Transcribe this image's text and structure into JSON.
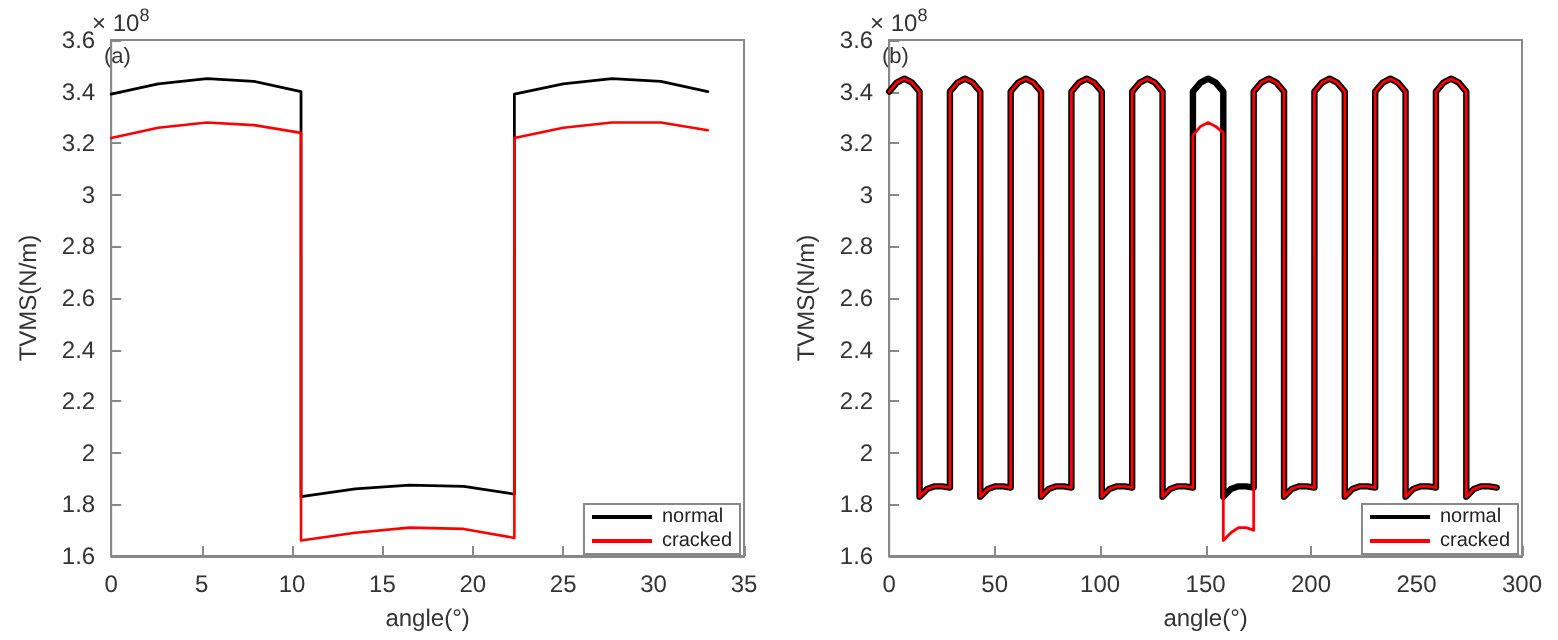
{
  "chart_data": [
    {
      "type": "line",
      "xlabel": "angle(°)",
      "ylabel": "TVMS(N/m)",
      "annotations": [
        "(a)",
        "× 10$^{8}$"
      ],
      "x": [
        0,
        2.6,
        5.3,
        7.9,
        10.5,
        10.5,
        13.5,
        16.5,
        19.5,
        22.3,
        22.3,
        25,
        27.7,
        30.4,
        33
      ],
      "series": [
        {
          "name": "normal",
          "color": "#000000",
          "values": [
            3.39,
            3.43,
            3.45,
            3.44,
            3.4,
            1.83,
            1.86,
            1.875,
            1.87,
            1.84,
            3.39,
            3.43,
            3.45,
            3.44,
            3.4
          ]
        },
        {
          "name": "cracked",
          "color": "#ff0000",
          "values": [
            3.22,
            3.26,
            3.28,
            3.27,
            3.24,
            1.66,
            1.69,
            1.71,
            1.705,
            1.67,
            3.22,
            3.26,
            3.28,
            3.28,
            3.25
          ]
        }
      ],
      "xlim": [
        0,
        35
      ],
      "xticks": [
        0,
        5,
        10,
        15,
        20,
        25,
        30,
        35
      ],
      "ylim": [
        1.6,
        3.6
      ],
      "yticks": [
        1.6,
        1.8,
        2,
        2.2,
        2.4,
        2.6,
        2.8,
        3,
        3.2,
        3.4,
        3.6
      ],
      "grid": false,
      "legend": "bottom right",
      "marker": "none",
      "line_style": "solid"
    },
    {
      "type": "line",
      "xlabel": "angle(°)",
      "ylabel": "TVMS(N/m)",
      "annotations": [
        "(b)",
        "× 10$^{8}$"
      ],
      "x": [
        0,
        3.6,
        7.2,
        10.8,
        14.4,
        14.4,
        18,
        21.6,
        25.2,
        28.8,
        28.8,
        32.4,
        36,
        39.6,
        43.2,
        43.2,
        46.8,
        50.4,
        54,
        57.6,
        57.6,
        61.2,
        64.8,
        68.4,
        72,
        72,
        75.6,
        79.2,
        82.8,
        86.4,
        86.4,
        90,
        93.6,
        97.2,
        100.8,
        100.8,
        104.4,
        108,
        111.6,
        115.2,
        115.2,
        118.8,
        122.4,
        126,
        129.6,
        129.6,
        133.2,
        136.8,
        140.4,
        144,
        144,
        147.6,
        151.2,
        154.8,
        158.4,
        158.4,
        162,
        165.6,
        169.2,
        172.8,
        172.8,
        176.4,
        180,
        183.6,
        187.2,
        187.2,
        190.8,
        194.4,
        198,
        201.6,
        201.6,
        205.2,
        208.8,
        212.4,
        216,
        216,
        219.6,
        223.2,
        226.8,
        230.4,
        230.4,
        234,
        237.6,
        241.2,
        244.8,
        244.8,
        248.4,
        252,
        255.6,
        259.2,
        259.2,
        262.8,
        266.4,
        270,
        273.6,
        273.6,
        277.2,
        280.8,
        284.4,
        288
      ],
      "series": [
        {
          "name": "normal",
          "color": "#000000",
          "values": [
            3.4,
            3.435,
            3.45,
            3.435,
            3.4,
            1.83,
            1.86,
            1.87,
            1.87,
            1.865,
            3.4,
            3.435,
            3.45,
            3.435,
            3.4,
            1.83,
            1.86,
            1.87,
            1.87,
            1.865,
            3.4,
            3.435,
            3.45,
            3.435,
            3.4,
            1.83,
            1.86,
            1.87,
            1.87,
            1.865,
            3.4,
            3.435,
            3.45,
            3.435,
            3.4,
            1.83,
            1.86,
            1.87,
            1.87,
            1.865,
            3.4,
            3.435,
            3.45,
            3.435,
            3.4,
            1.83,
            1.86,
            1.87,
            1.87,
            1.865,
            3.4,
            3.435,
            3.45,
            3.435,
            3.4,
            1.83,
            1.86,
            1.87,
            1.87,
            1.865,
            3.4,
            3.435,
            3.45,
            3.435,
            3.4,
            1.83,
            1.86,
            1.87,
            1.87,
            1.865,
            3.4,
            3.435,
            3.45,
            3.435,
            3.4,
            1.83,
            1.86,
            1.87,
            1.87,
            1.865,
            3.4,
            3.435,
            3.45,
            3.435,
            3.4,
            1.83,
            1.86,
            1.87,
            1.87,
            1.865,
            3.4,
            3.435,
            3.45,
            3.435,
            3.4,
            1.83,
            1.86,
            1.87,
            1.87,
            1.865
          ]
        },
        {
          "name": "cracked",
          "color": "#ff0000",
          "values": [
            3.4,
            3.435,
            3.45,
            3.435,
            3.4,
            1.83,
            1.86,
            1.87,
            1.87,
            1.865,
            3.4,
            3.435,
            3.45,
            3.435,
            3.4,
            1.83,
            1.86,
            1.87,
            1.87,
            1.865,
            3.4,
            3.435,
            3.45,
            3.435,
            3.4,
            1.83,
            1.86,
            1.87,
            1.87,
            1.865,
            3.4,
            3.435,
            3.45,
            3.435,
            3.4,
            1.83,
            1.86,
            1.87,
            1.87,
            1.865,
            3.4,
            3.435,
            3.45,
            3.435,
            3.4,
            1.83,
            1.86,
            1.87,
            1.87,
            1.865,
            3.23,
            3.265,
            3.28,
            3.265,
            3.24,
            1.66,
            1.69,
            1.71,
            1.71,
            1.7,
            3.4,
            3.435,
            3.45,
            3.435,
            3.4,
            1.83,
            1.86,
            1.87,
            1.87,
            1.865,
            3.4,
            3.435,
            3.45,
            3.435,
            3.4,
            1.83,
            1.86,
            1.87,
            1.87,
            1.865,
            3.4,
            3.435,
            3.45,
            3.435,
            3.4,
            1.83,
            1.86,
            1.87,
            1.87,
            1.865,
            3.4,
            3.435,
            3.45,
            3.435,
            3.4,
            1.83,
            1.86,
            1.87,
            1.87,
            1.865
          ]
        }
      ],
      "xlim": [
        0,
        300
      ],
      "xticks": [
        0,
        50,
        100,
        150,
        200,
        250,
        300
      ],
      "ylim": [
        1.6,
        3.6
      ],
      "yticks": [
        1.6,
        1.8,
        2,
        2.2,
        2.4,
        2.6,
        2.8,
        3,
        3.2,
        3.4,
        3.6
      ],
      "grid": false,
      "legend": "bottom right",
      "marker": "none",
      "line_style": "solid"
    }
  ]
}
